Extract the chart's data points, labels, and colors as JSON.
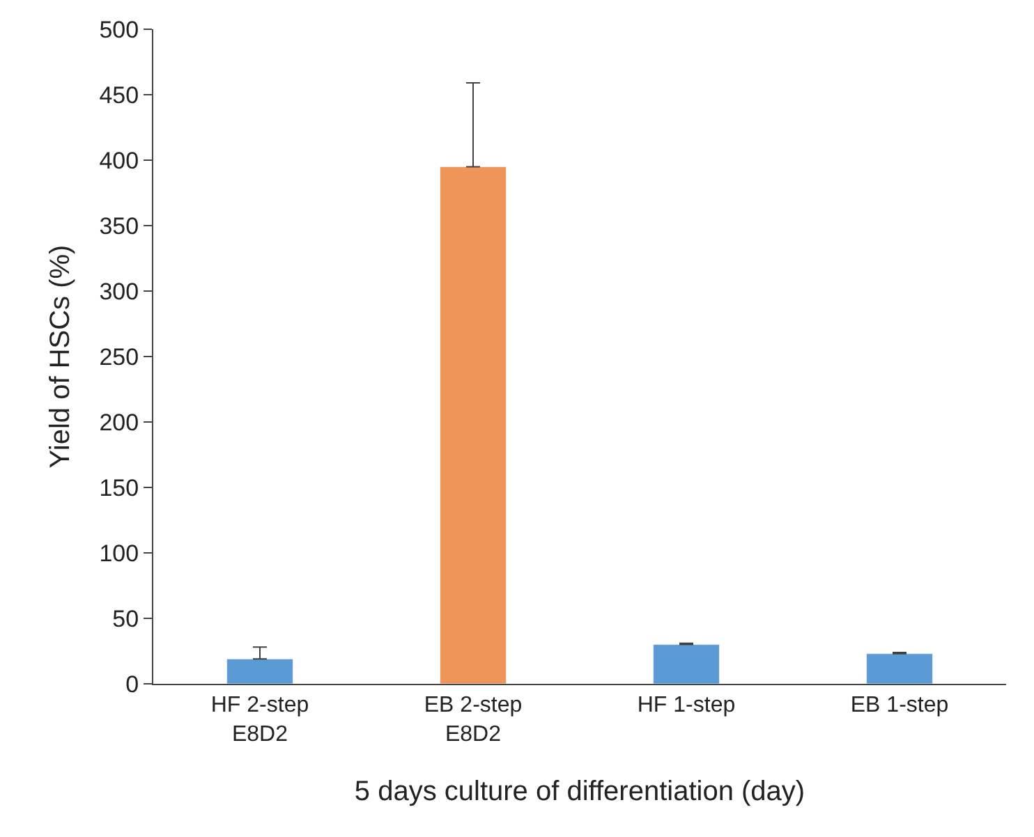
{
  "chart_data": {
    "type": "bar",
    "xlabel": "5 days culture of differentiation (day)",
    "ylabel": "Yield of HSCs (%)",
    "categories": [
      "HF 2-step\nE8D2",
      "EB 2-step\nE8D2",
      "HF 1-step",
      "EB 1-step"
    ],
    "values": [
      19,
      395,
      30,
      23
    ],
    "colors": [
      "#5b9bd5",
      "#f0955a",
      "#5b9bd5",
      "#5b9bd5"
    ],
    "errors": [
      [
        19,
        28
      ],
      [
        395,
        459
      ],
      [
        30,
        31
      ],
      [
        23,
        24
      ]
    ],
    "ylim": [
      0,
      500
    ],
    "yticks": [
      0,
      50,
      100,
      150,
      200,
      250,
      300,
      350,
      400,
      450,
      500
    ],
    "grid": false
  }
}
